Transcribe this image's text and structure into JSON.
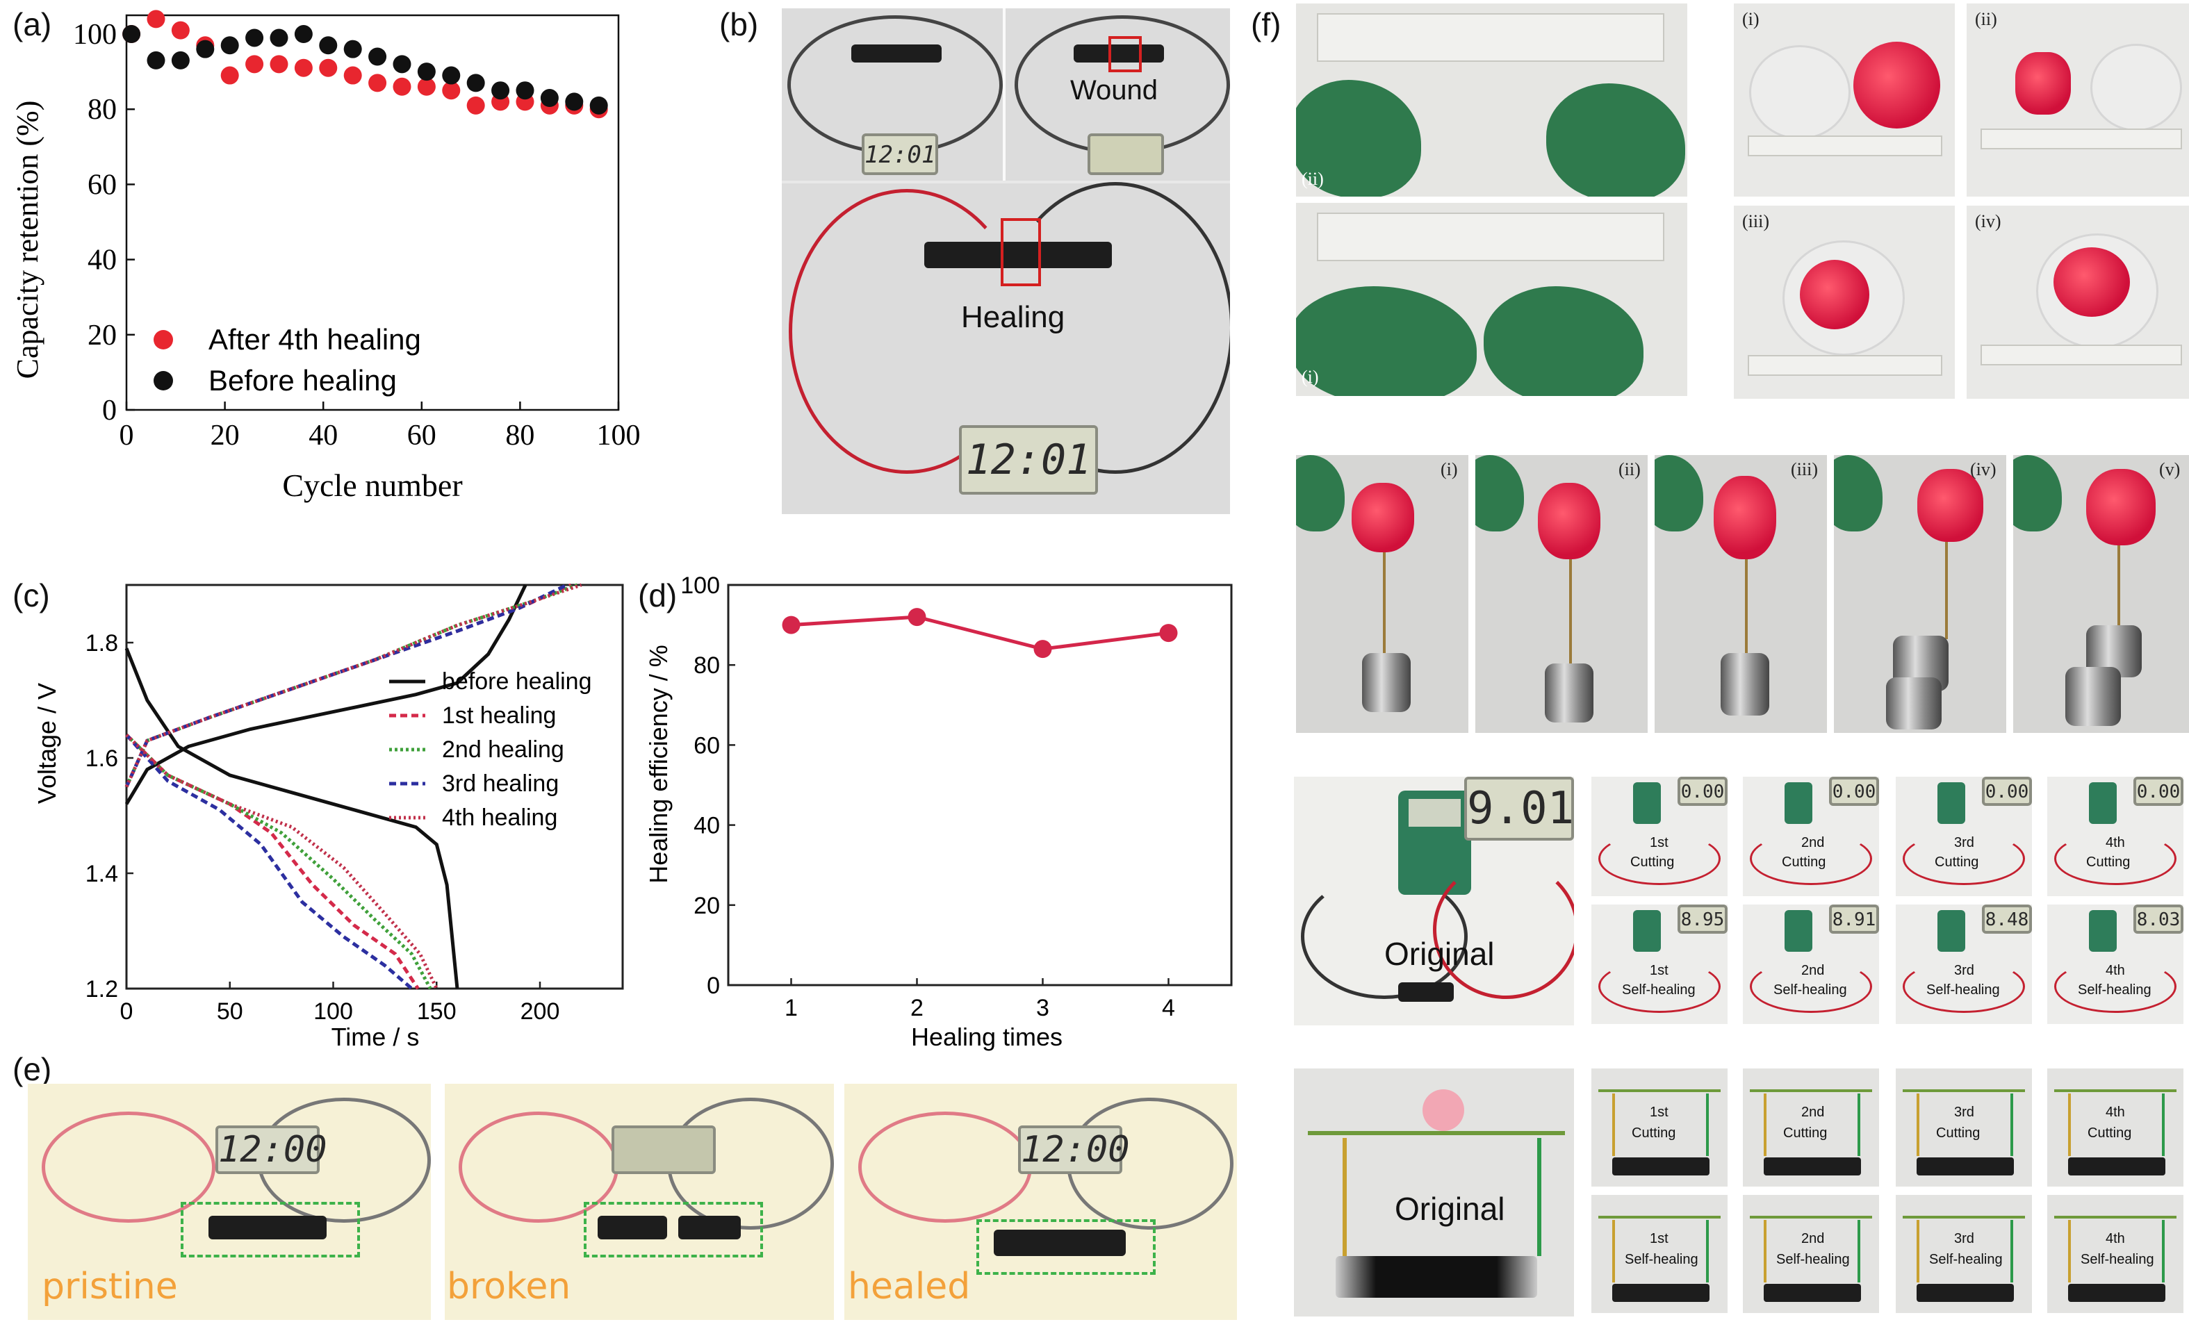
{
  "panels": {
    "a": "(a)",
    "b": "(b)",
    "c": "(c)",
    "d": "(d)",
    "e": "(e)",
    "f": "(f)"
  },
  "chart_data": [
    {
      "id": "a",
      "type": "scatter",
      "xlabel": "Cycle number",
      "ylabel": "Capacity retention (%)",
      "xlim": [
        0,
        100
      ],
      "ylim": [
        0,
        105
      ],
      "xticks": [
        "0",
        "20",
        "40",
        "60",
        "80",
        "100"
      ],
      "yticks": [
        "0",
        "20",
        "40",
        "60",
        "80",
        "100"
      ],
      "legend": "bottom-left",
      "series": [
        {
          "name": "After 4th healing",
          "color": "#e8262f",
          "x": [
            1,
            6,
            11,
            16,
            21,
            26,
            31,
            36,
            41,
            46,
            51,
            56,
            61,
            66,
            71,
            76,
            81,
            86,
            91,
            96
          ],
          "y": [
            100,
            104,
            101,
            97,
            89,
            92,
            92,
            91,
            91,
            89,
            87,
            86,
            86,
            85,
            81,
            82,
            82,
            81,
            81,
            80
          ]
        },
        {
          "name": "Before healing",
          "color": "#111111",
          "x": [
            1,
            6,
            11,
            16,
            21,
            26,
            31,
            36,
            41,
            46,
            51,
            56,
            61,
            66,
            71,
            76,
            81,
            86,
            91,
            96
          ],
          "y": [
            100,
            93,
            93,
            96,
            97,
            99,
            99,
            100,
            97,
            96,
            94,
            92,
            90,
            89,
            87,
            85,
            85,
            83,
            82,
            81
          ]
        }
      ]
    },
    {
      "id": "c",
      "type": "line",
      "xlabel": "Time / s",
      "ylabel": "Voltage / V",
      "xlim": [
        0,
        240
      ],
      "ylim": [
        1.2,
        1.9
      ],
      "xticks": [
        "0",
        "50",
        "100",
        "150",
        "200"
      ],
      "yticks": [
        "1.2",
        "1.4",
        "1.6",
        "1.8"
      ],
      "legend": "right",
      "series": [
        {
          "name": "before healing",
          "color": "#111111",
          "dash": "solid",
          "charge": [
            [
              0,
              1.52
            ],
            [
              10,
              1.58
            ],
            [
              30,
              1.62
            ],
            [
              60,
              1.65
            ],
            [
              100,
              1.68
            ],
            [
              140,
              1.71
            ],
            [
              160,
              1.73
            ],
            [
              175,
              1.78
            ],
            [
              185,
              1.84
            ],
            [
              193,
              1.9
            ]
          ],
          "discharge": [
            [
              0,
              1.79
            ],
            [
              10,
              1.7
            ],
            [
              25,
              1.62
            ],
            [
              50,
              1.57
            ],
            [
              80,
              1.54
            ],
            [
              110,
              1.51
            ],
            [
              140,
              1.48
            ],
            [
              150,
              1.45
            ],
            [
              155,
              1.38
            ],
            [
              160,
              1.2
            ]
          ]
        },
        {
          "name": "1st healing",
          "color": "#d42a4a",
          "dash": "10,6",
          "charge": [
            [
              0,
              1.55
            ],
            [
              10,
              1.63
            ],
            [
              40,
              1.67
            ],
            [
              80,
              1.72
            ],
            [
              120,
              1.77
            ],
            [
              160,
              1.82
            ],
            [
              190,
              1.86
            ],
            [
              215,
              1.9
            ]
          ],
          "discharge": [
            [
              0,
              1.64
            ],
            [
              20,
              1.57
            ],
            [
              50,
              1.52
            ],
            [
              70,
              1.47
            ],
            [
              90,
              1.38
            ],
            [
              110,
              1.31
            ],
            [
              130,
              1.26
            ],
            [
              141,
              1.2
            ]
          ]
        },
        {
          "name": "2nd healing",
          "color": "#3fa03a",
          "dash": "4,4",
          "charge": [
            [
              0,
              1.55
            ],
            [
              10,
              1.63
            ],
            [
              40,
              1.67
            ],
            [
              80,
              1.72
            ],
            [
              120,
              1.77
            ],
            [
              160,
              1.83
            ],
            [
              195,
              1.87
            ],
            [
              218,
              1.9
            ]
          ],
          "discharge": [
            [
              0,
              1.64
            ],
            [
              20,
              1.57
            ],
            [
              50,
              1.52
            ],
            [
              75,
              1.47
            ],
            [
              100,
              1.39
            ],
            [
              120,
              1.32
            ],
            [
              138,
              1.26
            ],
            [
              147,
              1.2
            ]
          ]
        },
        {
          "name": "3rd healing",
          "color": "#2c2fa0",
          "dash": "10,6",
          "charge": [
            [
              0,
              1.55
            ],
            [
              10,
              1.63
            ],
            [
              40,
              1.67
            ],
            [
              80,
              1.72
            ],
            [
              120,
              1.77
            ],
            [
              160,
              1.82
            ],
            [
              190,
              1.86
            ],
            [
              213,
              1.9
            ]
          ],
          "discharge": [
            [
              0,
              1.64
            ],
            [
              20,
              1.56
            ],
            [
              45,
              1.51
            ],
            [
              65,
              1.45
            ],
            [
              85,
              1.35
            ],
            [
              105,
              1.29
            ],
            [
              125,
              1.24
            ],
            [
              138,
              1.2
            ]
          ]
        },
        {
          "name": "4th healing",
          "color": "#c0304a",
          "dash": "3,4",
          "charge": [
            [
              0,
              1.55
            ],
            [
              10,
              1.63
            ],
            [
              40,
              1.67
            ],
            [
              80,
              1.72
            ],
            [
              120,
              1.77
            ],
            [
              160,
              1.83
            ],
            [
              195,
              1.87
            ],
            [
              220,
              1.9
            ]
          ],
          "discharge": [
            [
              0,
              1.64
            ],
            [
              20,
              1.57
            ],
            [
              50,
              1.52
            ],
            [
              80,
              1.48
            ],
            [
              105,
              1.41
            ],
            [
              125,
              1.33
            ],
            [
              142,
              1.26
            ],
            [
              150,
              1.2
            ]
          ]
        }
      ]
    },
    {
      "id": "d",
      "type": "line",
      "xlabel": "Healing times",
      "ylabel": "Healing efficiency / %",
      "xlim": [
        0.5,
        4.5
      ],
      "ylim": [
        0,
        100
      ],
      "xticks": [
        "1",
        "2",
        "3",
        "4"
      ],
      "yticks": [
        "0",
        "20",
        "40",
        "60",
        "80",
        "100"
      ],
      "series": [
        {
          "color": "#d4264a",
          "x": [
            1,
            2,
            3,
            4
          ],
          "y": [
            90,
            92,
            84,
            88
          ]
        }
      ]
    }
  ],
  "panel_b": {
    "wound_label": "Wound",
    "healing_label": "Healing",
    "clock_small_1": "12:01",
    "clock_large": "12:01"
  },
  "panel_e": {
    "clock_1": "12:00",
    "clock_3": "12:00",
    "labels": [
      "pristine",
      "broken",
      "healed"
    ]
  },
  "panel_f": {
    "stretch_labels": [
      "(ii)",
      "(i)"
    ],
    "dish_labels": [
      "(i)",
      "(ii)",
      "(iii)",
      "(iv)"
    ],
    "weight_labels": [
      "(i)",
      "(ii)",
      "(iii)",
      "(iv)",
      "(v)"
    ],
    "original_label": "Original",
    "meter_main": "9.01",
    "meter_cutting": [
      "0.00",
      "0.00",
      "0.00",
      "0.00"
    ],
    "meter_healing": [
      "8.95",
      "8.91",
      "8.48",
      "8.03"
    ],
    "cutting": [
      "1st\nCutting",
      "2nd\nCutting",
      "3rd\nCutting",
      "4th\nCutting"
    ],
    "healing": [
      "1st\nSelf-healing",
      "2nd\nSelf-healing",
      "3rd\nSelf-healing",
      "4th\nSelf-healing"
    ],
    "cutting_ord": [
      "1st",
      "2nd",
      "3rd",
      "4th"
    ],
    "cutting_word": "Cutting",
    "healing_word": "Self-healing"
  }
}
